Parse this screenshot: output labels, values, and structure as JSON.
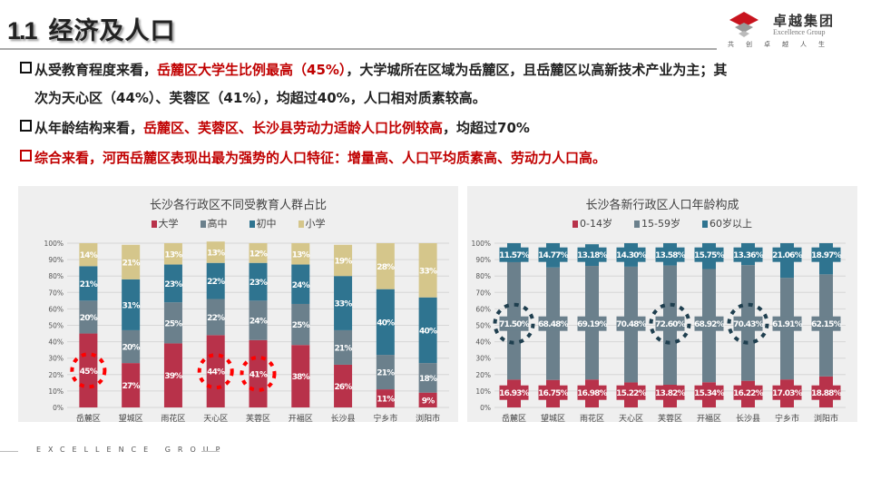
{
  "header": {
    "number": "1.1",
    "title": "经济及人口"
  },
  "logo": {
    "name_cn": "卓越集团",
    "name_en": "Excellence Group",
    "slogan": "共创卓越人生"
  },
  "paragraphs": [
    {
      "bullet_color": "#111111",
      "parts": [
        {
          "text": "从受教育程度来看，",
          "red": false
        },
        {
          "text": "岳麓区大学生比例最高（45%）",
          "red": true
        },
        {
          "text": "，大学城所在区域为岳麓区，且岳麓区以高新技术产业为主；其",
          "red": false
        }
      ]
    },
    {
      "bullet_color": "",
      "parts": [
        {
          "text": "次为天心区（44%）、芙蓉区（41%），均超过40%，人口相对质素较高。",
          "red": false
        }
      ]
    },
    {
      "bullet_color": "#111111",
      "parts": [
        {
          "text": "从年龄结构来看，",
          "red": false
        },
        {
          "text": "岳麓区、芙蓉区、长沙县劳动力适龄人口比例较高",
          "red": true
        },
        {
          "text": "，均超过70%",
          "red": false
        }
      ]
    },
    {
      "bullet_color": "#c00000",
      "parts": [
        {
          "text": "综合来看，河西岳麓区表现出最为强势的人口特征：增量高、人口平均质素高、劳动力人口高。",
          "red": true
        }
      ]
    }
  ],
  "footer": {
    "text": "EXCELLENCE GROUP"
  },
  "chart_data": [
    {
      "type": "bar",
      "stacked": true,
      "title": "长沙各行政区不同受教育人群占比",
      "categories": [
        "岳麓区",
        "望城区",
        "雨花区",
        "天心区",
        "芙蓉区",
        "开福区",
        "长沙县",
        "宁乡市",
        "浏阳市"
      ],
      "yticks": [
        "0%",
        "10%",
        "20%",
        "30%",
        "40%",
        "50%",
        "60%",
        "70%",
        "80%",
        "90%",
        "100%"
      ],
      "ylim": [
        0,
        100
      ],
      "grid": true,
      "legend_position": "top",
      "series": [
        {
          "name": "大学",
          "color": "#b8324a",
          "values": [
            45,
            27,
            39,
            44,
            41,
            38,
            26,
            11,
            9
          ]
        },
        {
          "name": "高中",
          "color": "#6b808c",
          "values": [
            20,
            20,
            25,
            22,
            24,
            25,
            21,
            21,
            18
          ]
        },
        {
          "name": "初中",
          "color": "#2f7490",
          "values": [
            21,
            31,
            23,
            22,
            23,
            24,
            33,
            40,
            40
          ]
        },
        {
          "name": "小学",
          "color": "#d5c68b",
          "values": [
            14,
            21,
            13,
            13,
            12,
            13,
            19,
            28,
            33
          ]
        }
      ],
      "highlighted": {
        "series": "大学",
        "categories": [
          "岳麓区",
          "天心区",
          "芙蓉区"
        ],
        "color": "#ff0000"
      }
    },
    {
      "type": "bar",
      "stacked": true,
      "title": "长沙各新行政区人口年龄构成",
      "categories": [
        "岳麓区",
        "望城区",
        "雨花区",
        "天心区",
        "芙蓉区",
        "开福区",
        "长沙县",
        "宁乡市",
        "浏阳市"
      ],
      "yticks": [
        "0%",
        "10%",
        "20%",
        "30%",
        "40%",
        "50%",
        "60%",
        "70%",
        "80%",
        "90%",
        "100%"
      ],
      "ylim": [
        0,
        100
      ],
      "grid": true,
      "legend_position": "top",
      "series": [
        {
          "name": "0-14岁",
          "color": "#b8324a",
          "values": [
            16.93,
            16.75,
            16.98,
            15.22,
            13.82,
            15.34,
            16.22,
            17.03,
            18.88
          ],
          "labels": [
            "16.93%",
            "16.75%",
            "16.98%",
            "15.22%",
            "13.82%",
            "15.34%",
            "16.22%",
            "17.03%",
            "18.88%"
          ]
        },
        {
          "name": "15-59岁",
          "color": "#6b808c",
          "values": [
            71.5,
            68.48,
            69.19,
            70.48,
            72.6,
            68.92,
            70.43,
            61.91,
            62.15
          ],
          "labels": [
            "71.50%",
            "68.48%",
            "69.19%",
            "70.48%",
            "72.60%",
            "68.92%",
            "70.43%",
            "61.91%",
            "62.15%"
          ]
        },
        {
          "name": "60岁以上",
          "color": "#2f7490",
          "values": [
            11.57,
            14.77,
            13.18,
            14.3,
            13.58,
            15.75,
            13.36,
            21.06,
            18.97
          ],
          "labels": [
            "11.57%",
            "14.77%",
            "13.18%",
            "14.30%",
            "13.58%",
            "15.75%",
            "13.36%",
            "21.06%",
            "18.97%"
          ]
        }
      ],
      "highlighted": {
        "series": "15-59岁",
        "categories": [
          "岳麓区",
          "芙蓉区",
          "长沙县"
        ],
        "color": "#1f3f4f"
      }
    }
  ]
}
